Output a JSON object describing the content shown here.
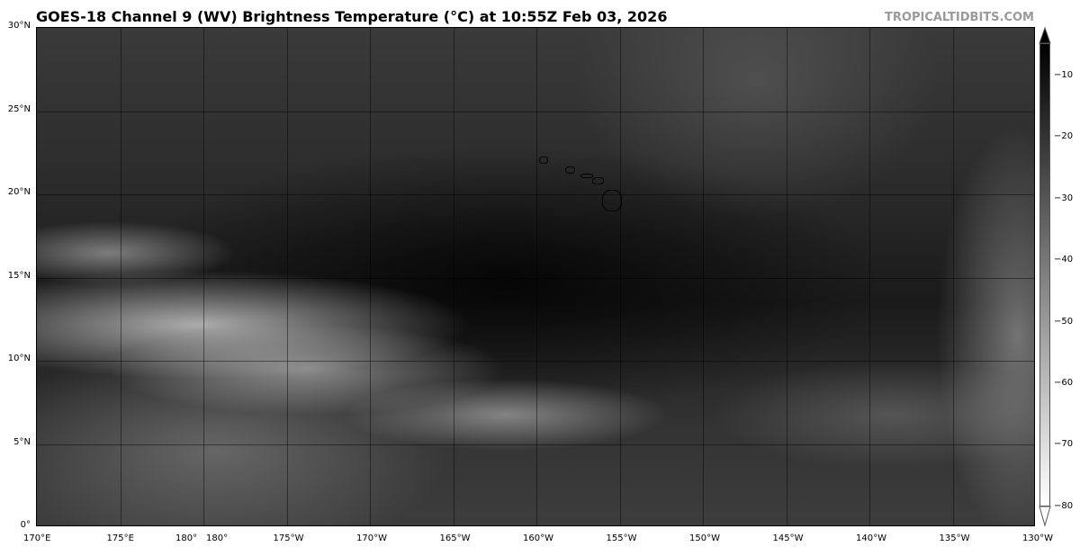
{
  "title": "GOES-18 Channel 9 (WV) Brightness Temperature (°C) at 10:55Z Feb 03, 2026",
  "brand": "TROPICALTIDBITS.COM",
  "map": {
    "lon_labels": [
      "170°E",
      "175°E",
      "180°",
      "180°",
      "175°W",
      "170°W",
      "165°W",
      "160°W",
      "155°W",
      "150°W",
      "145°W",
      "140°W",
      "135°W",
      "130°W"
    ],
    "lat_labels": [
      "0°",
      "5°N",
      "10°N",
      "15°N",
      "20°N",
      "25°N",
      "30°N"
    ]
  },
  "colorbar": {
    "colormap": "grayscale, black = warm, white = cold",
    "ticks": [
      "−10",
      "−20",
      "−30",
      "−40",
      "−50",
      "−60",
      "−70",
      "−80"
    ],
    "extend": "both"
  }
}
